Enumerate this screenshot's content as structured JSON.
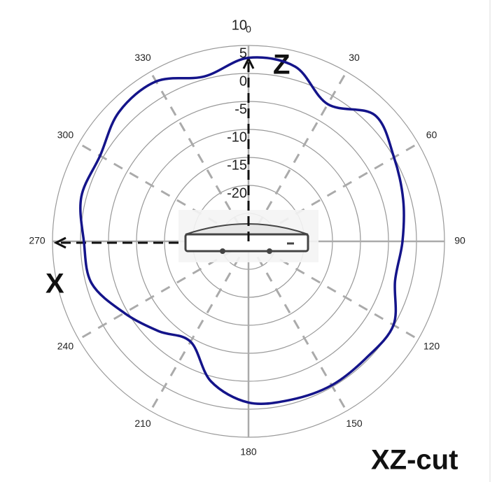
{
  "chart_data": {
    "type": "polar",
    "title": "XZ-cut",
    "axis_labels": [
      "X",
      "Z"
    ],
    "theta": [
      0,
      15,
      30,
      45,
      60,
      75,
      90,
      105,
      120,
      135,
      150,
      165,
      180,
      195,
      210,
      225,
      240,
      255,
      270,
      285,
      300,
      315,
      330,
      345
    ],
    "series": [
      {
        "color": "#14148a",
        "values": [
          7.8,
          7.3,
          3.3,
          6.9,
          5,
          3.6,
          2.5,
          2.1,
          4.9,
          4.6,
          4.7,
          4.3,
          3.8,
          0.9,
          -4.3,
          -2.3,
          0.6,
          4,
          4.4,
          5.9,
          5.6,
          7.7,
          8,
          5.5
        ]
      }
    ],
    "rlim": [
      -25,
      10
    ],
    "rticks": [
      -20,
      -15,
      -10,
      -5,
      0,
      5,
      10
    ],
    "thetaticks": [
      0,
      30,
      60,
      90,
      120,
      150,
      180,
      210,
      240,
      270,
      300,
      330
    ]
  }
}
